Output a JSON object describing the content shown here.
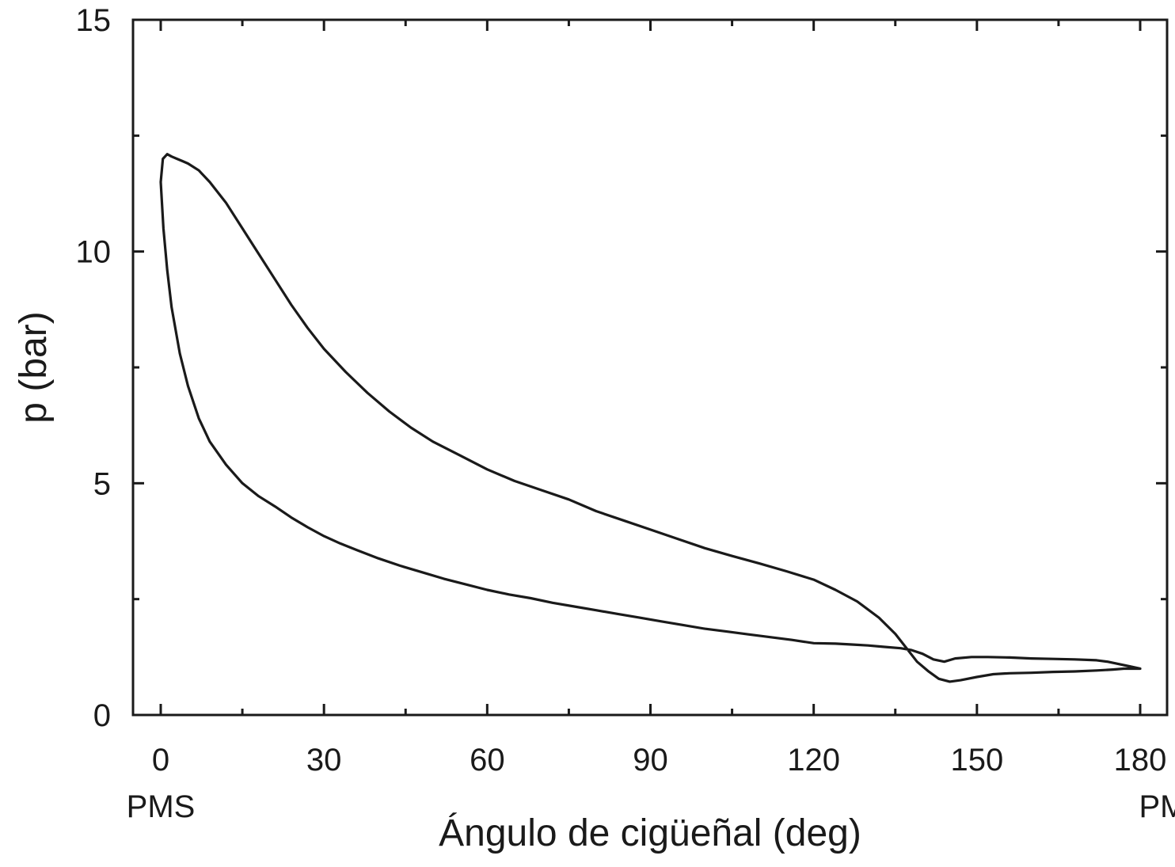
{
  "chart_data": {
    "type": "line",
    "title": "",
    "xlabel": "Ángulo de cigüeñal (deg)",
    "ylabel": "p (bar)",
    "xlim": [
      -5,
      185
    ],
    "ylim": [
      0,
      15
    ],
    "x_ticks": [
      0,
      30,
      60,
      90,
      120,
      150,
      180
    ],
    "x_tick_labels": [
      "0",
      "30",
      "60",
      "90",
      "120",
      "150",
      "180"
    ],
    "y_ticks": [
      0,
      5,
      10,
      15
    ],
    "y_tick_labels": [
      "0",
      "5",
      "10",
      "15"
    ],
    "x_minor_ticks": [
      15,
      45,
      75,
      105,
      135,
      165
    ],
    "y_minor_ticks": [
      2.5,
      7.5,
      12.5
    ],
    "annotations": [
      {
        "text": "PMS",
        "x": 0
      },
      {
        "text": "PMI",
        "x": 180
      }
    ],
    "grid": false,
    "legend": "none",
    "line_color": "#1a1a1a",
    "series": [
      {
        "x": [
          180,
          178,
          176,
          174,
          172,
          168,
          164,
          160,
          156,
          152,
          149,
          146,
          144,
          142,
          140,
          138,
          136,
          133,
          130,
          127,
          124,
          120,
          116,
          112,
          108,
          104,
          100,
          96,
          92,
          88,
          84,
          80,
          76,
          72,
          68,
          64,
          60,
          56,
          52,
          48,
          44,
          40,
          36,
          33,
          30,
          27,
          24,
          21,
          18,
          15,
          12,
          9,
          7,
          5,
          3.5,
          2,
          1.2,
          0.5,
          0,
          0.4,
          1.2,
          2,
          3,
          4,
          5,
          7,
          9,
          12,
          15,
          18,
          21,
          24,
          27,
          30,
          34,
          38,
          42,
          46,
          50,
          55,
          60,
          65,
          70,
          75,
          80,
          85,
          90,
          95,
          100,
          105,
          110,
          115,
          120,
          124,
          128,
          132,
          135,
          137,
          139,
          141,
          143,
          145,
          147,
          150,
          153,
          156,
          160,
          164,
          168,
          172,
          175,
          177,
          178.5,
          180
        ],
        "y": [
          1.0,
          1.05,
          1.1,
          1.15,
          1.18,
          1.2,
          1.21,
          1.22,
          1.24,
          1.25,
          1.25,
          1.22,
          1.15,
          1.2,
          1.32,
          1.4,
          1.44,
          1.47,
          1.5,
          1.52,
          1.54,
          1.55,
          1.62,
          1.68,
          1.74,
          1.8,
          1.86,
          1.94,
          2.02,
          2.1,
          2.18,
          2.26,
          2.34,
          2.42,
          2.52,
          2.6,
          2.7,
          2.82,
          2.94,
          3.08,
          3.22,
          3.38,
          3.56,
          3.7,
          3.86,
          4.05,
          4.26,
          4.5,
          4.72,
          5.0,
          5.4,
          5.9,
          6.4,
          7.1,
          7.8,
          8.8,
          9.6,
          10.5,
          11.5,
          12.0,
          12.1,
          12.05,
          12.0,
          11.95,
          11.9,
          11.75,
          11.5,
          11.05,
          10.5,
          9.95,
          9.4,
          8.85,
          8.35,
          7.9,
          7.4,
          6.95,
          6.55,
          6.2,
          5.9,
          5.6,
          5.3,
          5.05,
          4.85,
          4.65,
          4.4,
          4.2,
          4.0,
          3.8,
          3.6,
          3.43,
          3.27,
          3.1,
          2.92,
          2.7,
          2.45,
          2.1,
          1.75,
          1.45,
          1.15,
          0.95,
          0.78,
          0.72,
          0.75,
          0.82,
          0.88,
          0.9,
          0.91,
          0.93,
          0.94,
          0.96,
          0.98,
          1.0,
          1.0,
          1.0
        ]
      }
    ]
  }
}
